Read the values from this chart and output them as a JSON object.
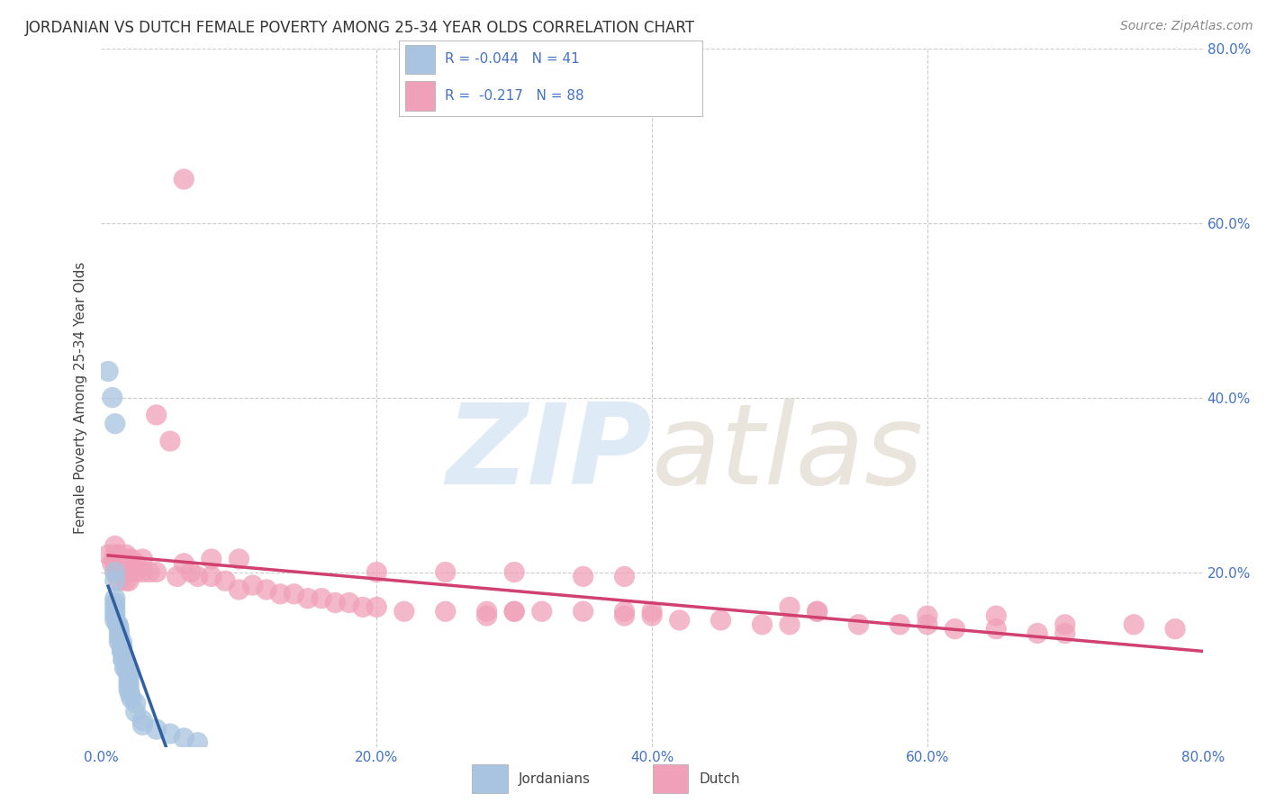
{
  "title": "JORDANIAN VS DUTCH FEMALE POVERTY AMONG 25-34 YEAR OLDS CORRELATION CHART",
  "source": "Source: ZipAtlas.com",
  "ylabel": "Female Poverty Among 25-34 Year Olds",
  "xlim": [
    0.0,
    0.8
  ],
  "ylim": [
    0.0,
    0.8
  ],
  "xticks": [
    0.0,
    0.2,
    0.4,
    0.6,
    0.8
  ],
  "yticks": [
    0.2,
    0.4,
    0.6,
    0.8
  ],
  "xtick_labels": [
    "0.0%",
    "20.0%",
    "40.0%",
    "60.0%",
    "80.0%"
  ],
  "ytick_labels_right": [
    "20.0%",
    "40.0%",
    "60.0%",
    "80.0%"
  ],
  "jordanian_color": "#a8c4e0",
  "dutch_color": "#f0a0b8",
  "jordanian_line_color": "#3060a0",
  "dutch_line_color": "#d04070",
  "background_color": "#ffffff",
  "grid_color": "#cccccc",
  "legend_text_color": "#4472c4",
  "jordanian_R": -0.044,
  "jordanian_N": 41,
  "dutch_R": -0.217,
  "dutch_N": 88,
  "jordanian_scatter_x": [
    0.005,
    0.008,
    0.01,
    0.01,
    0.01,
    0.01,
    0.01,
    0.01,
    0.01,
    0.01,
    0.01,
    0.012,
    0.012,
    0.013,
    0.013,
    0.013,
    0.013,
    0.015,
    0.015,
    0.015,
    0.015,
    0.015,
    0.016,
    0.016,
    0.017,
    0.018,
    0.02,
    0.02,
    0.02,
    0.02,
    0.02,
    0.021,
    0.022,
    0.025,
    0.025,
    0.03,
    0.03,
    0.04,
    0.05,
    0.06,
    0.07
  ],
  "jordanian_scatter_y": [
    0.43,
    0.4,
    0.37,
    0.2,
    0.19,
    0.17,
    0.165,
    0.16,
    0.155,
    0.15,
    0.145,
    0.14,
    0.14,
    0.135,
    0.13,
    0.125,
    0.12,
    0.12,
    0.115,
    0.115,
    0.11,
    0.11,
    0.1,
    0.1,
    0.09,
    0.09,
    0.085,
    0.08,
    0.075,
    0.07,
    0.065,
    0.06,
    0.055,
    0.05,
    0.04,
    0.03,
    0.025,
    0.02,
    0.015,
    0.01,
    0.005
  ],
  "dutch_scatter_x": [
    0.005,
    0.008,
    0.01,
    0.01,
    0.01,
    0.01,
    0.012,
    0.012,
    0.013,
    0.013,
    0.014,
    0.015,
    0.015,
    0.015,
    0.016,
    0.016,
    0.017,
    0.018,
    0.018,
    0.02,
    0.02,
    0.02,
    0.02,
    0.022,
    0.025,
    0.025,
    0.03,
    0.03,
    0.035,
    0.04,
    0.04,
    0.05,
    0.055,
    0.06,
    0.065,
    0.07,
    0.08,
    0.09,
    0.1,
    0.11,
    0.12,
    0.13,
    0.14,
    0.15,
    0.16,
    0.17,
    0.18,
    0.19,
    0.2,
    0.22,
    0.25,
    0.28,
    0.3,
    0.32,
    0.35,
    0.38,
    0.4,
    0.42,
    0.45,
    0.48,
    0.5,
    0.52,
    0.55,
    0.58,
    0.6,
    0.62,
    0.65,
    0.68,
    0.7,
    0.5,
    0.52,
    0.28,
    0.3,
    0.38,
    0.4,
    0.06,
    0.08,
    0.1,
    0.2,
    0.25,
    0.3,
    0.35,
    0.38,
    0.6,
    0.65,
    0.7,
    0.75,
    0.78
  ],
  "dutch_scatter_y": [
    0.22,
    0.21,
    0.23,
    0.22,
    0.21,
    0.2,
    0.22,
    0.21,
    0.2,
    0.19,
    0.215,
    0.215,
    0.21,
    0.2,
    0.205,
    0.2,
    0.215,
    0.22,
    0.19,
    0.215,
    0.21,
    0.2,
    0.19,
    0.215,
    0.21,
    0.2,
    0.215,
    0.2,
    0.2,
    0.38,
    0.2,
    0.35,
    0.195,
    0.21,
    0.2,
    0.195,
    0.195,
    0.19,
    0.18,
    0.185,
    0.18,
    0.175,
    0.175,
    0.17,
    0.17,
    0.165,
    0.165,
    0.16,
    0.16,
    0.155,
    0.155,
    0.15,
    0.155,
    0.155,
    0.155,
    0.15,
    0.15,
    0.145,
    0.145,
    0.14,
    0.14,
    0.155,
    0.14,
    0.14,
    0.14,
    0.135,
    0.135,
    0.13,
    0.13,
    0.16,
    0.155,
    0.155,
    0.155,
    0.155,
    0.155,
    0.65,
    0.215,
    0.215,
    0.2,
    0.2,
    0.2,
    0.195,
    0.195,
    0.15,
    0.15,
    0.14,
    0.14,
    0.135
  ]
}
